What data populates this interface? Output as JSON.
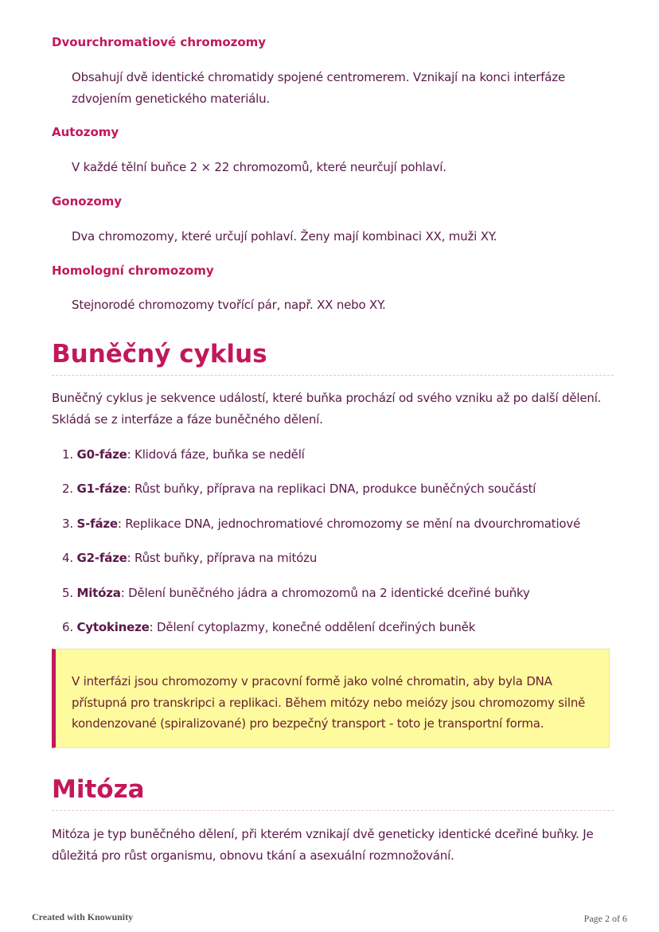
{
  "terms": [
    {
      "term": "Dvourchromatiové chromozomy",
      "definition": "Obsahují dvě identické chromatidy spojené centromerem. Vznikají na konci interfáze zdvojením genetického materiálu."
    },
    {
      "term": "Autozomy",
      "definition": "V každé tělní buňce 2 × 22 chromozomů, které neurčují pohlaví."
    },
    {
      "term": "Gonozomy",
      "definition": "Dva chromozomy, které určují pohlaví. Ženy mají kombinaci XX, muži XY."
    },
    {
      "term": "Homologní chromozomy",
      "definition": "Stejnorodé chromozomy tvořící pár, např. XX nebo XY."
    }
  ],
  "cycle": {
    "title": "Buněčný cyklus",
    "intro": "Buněčný cyklus je sekvence událostí, které buňka prochází od svého vzniku až po další dělení. Skládá se z interfáze a fáze buněčného dělení.",
    "items": [
      {
        "num": "1.",
        "label": "G0-fáze",
        "text": ": Klidová fáze, buňka se nedělí"
      },
      {
        "num": "2.",
        "label": "G1-fáze",
        "text": ": Růst buňky, příprava na replikaci DNA, produkce buněčných součástí"
      },
      {
        "num": "3.",
        "label": "S-fáze",
        "text": ": Replikace DNA, jednochromatiové chromozomy se mění na dvourchromatiové"
      },
      {
        "num": "4.",
        "label": "G2-fáze",
        "text": ": Růst buňky, příprava na mitózu"
      },
      {
        "num": "5.",
        "label": "Mitóza",
        "text": ": Dělení buněčného jádra a chromozomů na 2 identické dceřiné buňky"
      },
      {
        "num": "6.",
        "label": "Cytokineze",
        "text": ": Dělení cytoplazmy, konečné oddělení dceřiných buněk"
      }
    ],
    "callout": "V interfázi jsou chromozomy v pracovní formě jako volné chromatin, aby byla DNA přístupná pro transkripci a replikaci. Během mitózy nebo meiózy jsou chromozomy silně kondenzované (spiralizované) pro bezpečný transport - toto je transportní forma."
  },
  "mitosis": {
    "title": "Mitóza",
    "intro": "Mitóza je typ buněčného dělení, při kterém vznikají dvě geneticky identické dceřiné buňky. Je důležitá pro růst organismu, obnovu tkání a asexuální rozmnožování."
  },
  "footer": {
    "left": "Created with Knowunity",
    "right": "Page 2 of 6"
  },
  "colors": {
    "accent": "#c2185b",
    "text": "#5b1848",
    "callout_bg": "#fdfb9e"
  }
}
